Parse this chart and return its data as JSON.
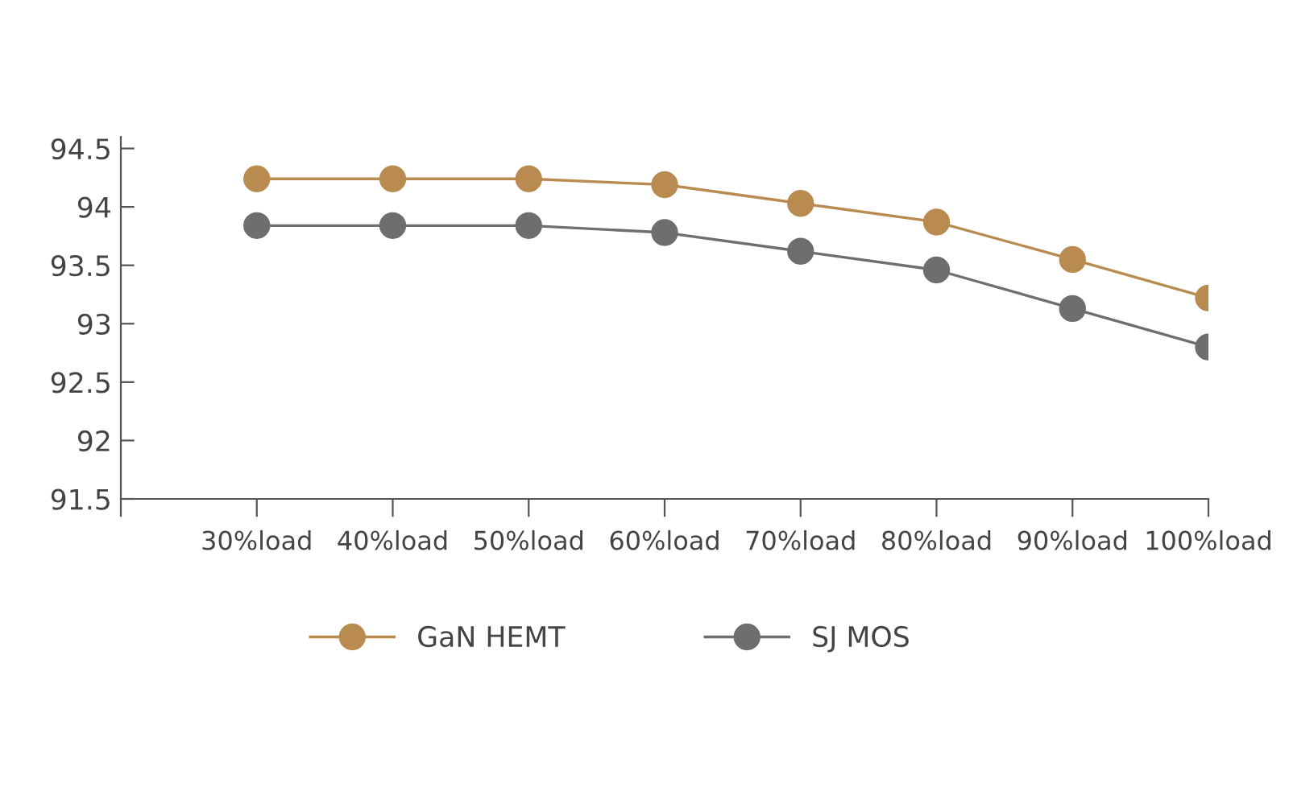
{
  "chart_data": {
    "type": "line",
    "categories": [
      null,
      "30%load",
      "40%load",
      "50%load",
      "60%load",
      "70%load",
      "80%load",
      "90%load",
      "100%load"
    ],
    "series": [
      {
        "name": "GaN HEMT",
        "color": "#b98b50",
        "values": [
          null,
          94.24,
          94.24,
          94.24,
          94.19,
          94.03,
          93.87,
          93.55,
          93.22
        ]
      },
      {
        "name": "SJ MOS",
        "color": "#6e6e6e",
        "values": [
          null,
          93.84,
          93.84,
          93.84,
          93.78,
          93.62,
          93.46,
          93.13,
          92.8
        ]
      }
    ],
    "ylim": [
      91.5,
      94.6
    ],
    "yticks": [
      91.5,
      92,
      92.5,
      93,
      93.5,
      94,
      94.5
    ],
    "marker": "circle",
    "line_style": "solid",
    "grid": false,
    "legend": "bottom"
  }
}
